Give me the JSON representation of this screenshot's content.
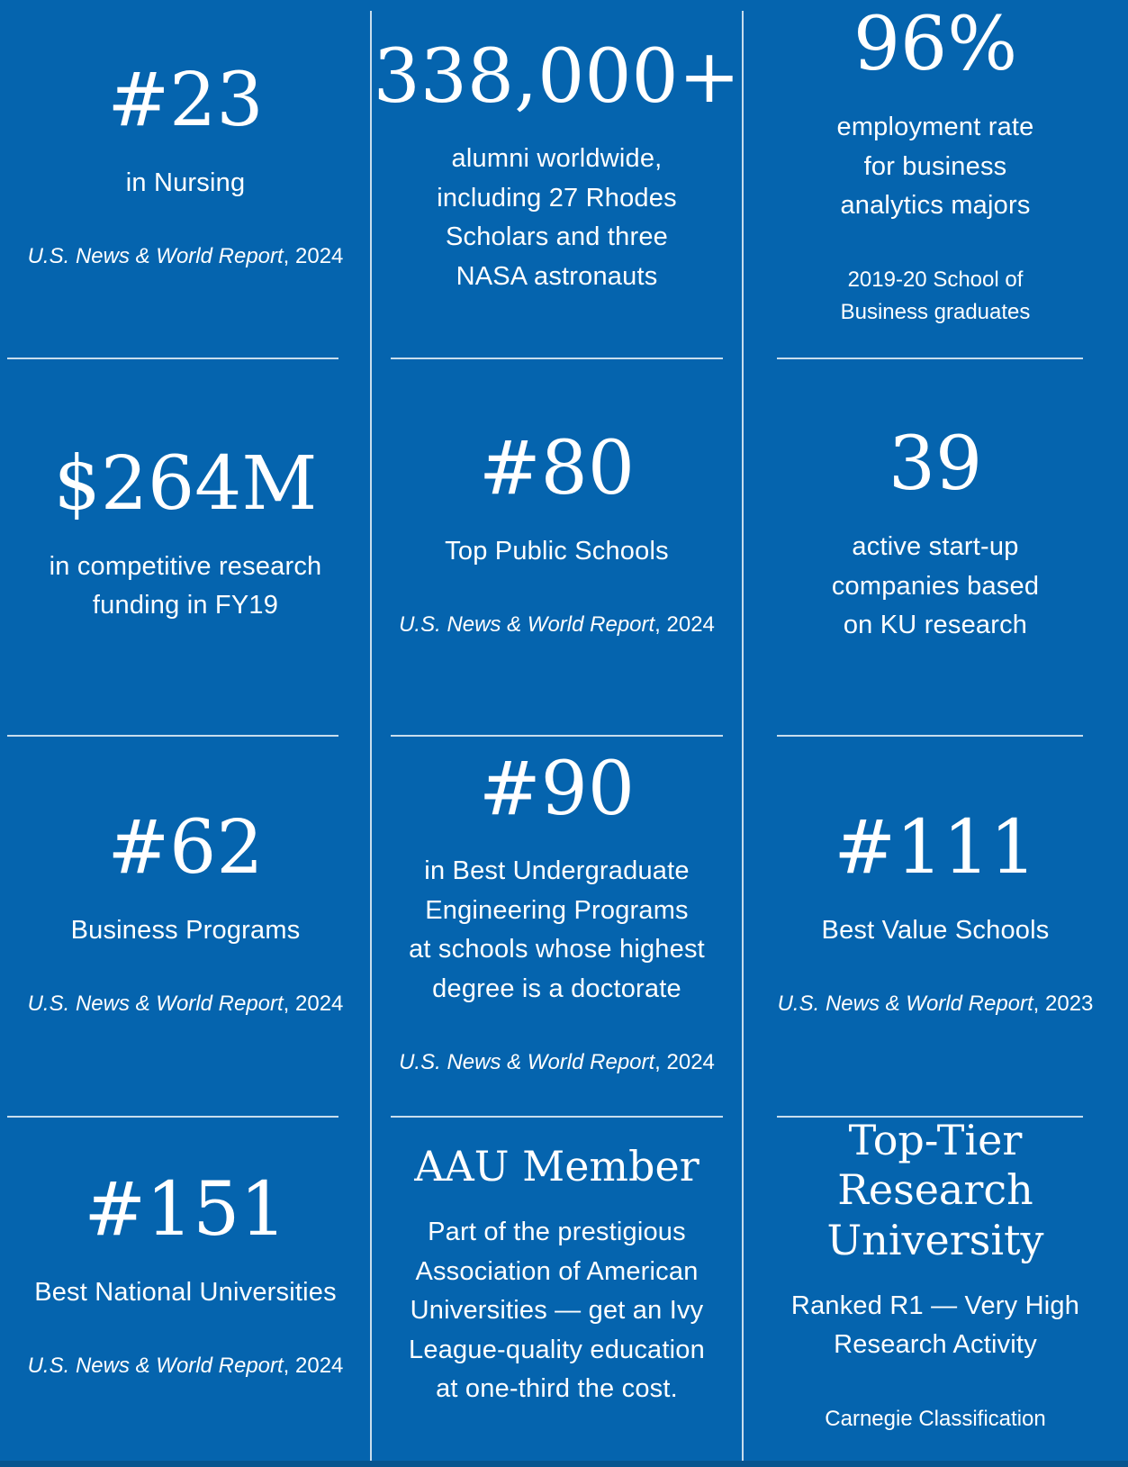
{
  "colors": {
    "background": "#0564AE",
    "footer_bar": "#07548F",
    "divider": "rgba(255,255,255,0.78)",
    "text": "#FFFFFF"
  },
  "cells": [
    {
      "stat": "#23",
      "label": "in Nursing",
      "source_italic": "U.S. News & World Report",
      "source_rest": ", 2024"
    },
    {
      "stat": "338,000+",
      "label": "alumni worldwide,\nincluding 27 Rhodes\nScholars and three\nNASA astronauts"
    },
    {
      "stat": "96%",
      "label": "employment rate\nfor business\nanalytics majors",
      "source_rest": "2019-20 School of\nBusiness graduates"
    },
    {
      "stat": "$264M",
      "label": "in competitive research\nfunding in FY19"
    },
    {
      "stat": "#80",
      "label": "Top Public Schools",
      "source_italic": "U.S. News & World Report",
      "source_rest": ", 2024"
    },
    {
      "stat": "39",
      "label": "active start-up\ncompanies based\non KU research"
    },
    {
      "stat": "#62",
      "label": "Business Programs",
      "source_italic": "U.S. News & World Report",
      "source_rest": ", 2024"
    },
    {
      "stat": "#90",
      "label": "in Best Undergraduate\nEngineering Programs\nat schools whose highest\ndegree is a doctorate",
      "source_italic": "U.S. News & World Report",
      "source_rest": ", 2024"
    },
    {
      "stat": "#111",
      "label": "Best Value Schools",
      "source_italic": "U.S. News & World Report",
      "source_rest": ", 2023"
    },
    {
      "stat": "#151",
      "label": "Best National Universities",
      "source_italic": "U.S. News & World Report",
      "source_rest": ", 2024"
    },
    {
      "stat": "AAU Member",
      "label": "Part of the prestigious\nAssociation of American\nUniversities — get an Ivy\nLeague-quality education\nat one-third the cost."
    },
    {
      "stat": "Top-Tier\nResearch\nUniversity",
      "label": "Ranked R1 — Very High\nResearch Activity",
      "source_rest": "Carnegie Classification"
    }
  ]
}
